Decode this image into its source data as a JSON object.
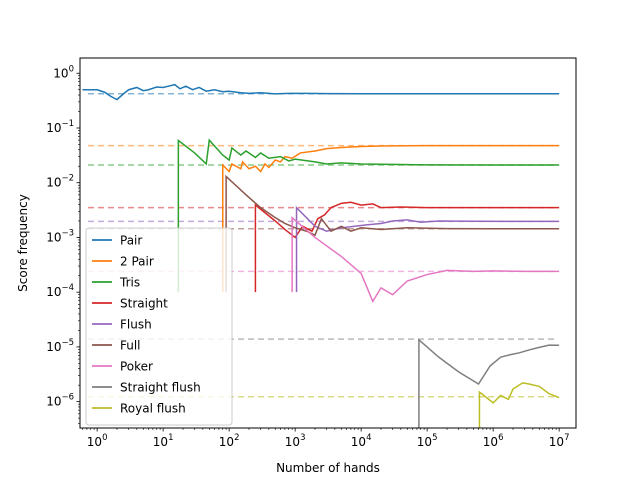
{
  "chart_data": {
    "type": "line",
    "title": "",
    "xlabel": "Number of hands",
    "ylabel": "Score frequency",
    "xscale": "log",
    "yscale": "log",
    "xlim": [
      0.55,
      18000000
    ],
    "ylim": [
      3.3e-07,
      1.9
    ],
    "grid": false,
    "legend_position": "lower-left",
    "x_ticks": [
      {
        "value": 1,
        "base": "10",
        "exp": "0"
      },
      {
        "value": 10,
        "base": "10",
        "exp": "1"
      },
      {
        "value": 100,
        "base": "10",
        "exp": "2"
      },
      {
        "value": 1000,
        "base": "10",
        "exp": "3"
      },
      {
        "value": 10000,
        "base": "10",
        "exp": "4"
      },
      {
        "value": 100000,
        "base": "10",
        "exp": "5"
      },
      {
        "value": 1000000,
        "base": "10",
        "exp": "6"
      },
      {
        "value": 10000000,
        "base": "10",
        "exp": "7"
      }
    ],
    "y_ticks": [
      {
        "value": 1e-06,
        "base": "10",
        "exp": "−6"
      },
      {
        "value": 1e-05,
        "base": "10",
        "exp": "−5"
      },
      {
        "value": 0.0001,
        "base": "10",
        "exp": "−4"
      },
      {
        "value": 0.001,
        "base": "10",
        "exp": "−3"
      },
      {
        "value": 0.01,
        "base": "10",
        "exp": "−2"
      },
      {
        "value": 0.1,
        "base": "10",
        "exp": "−1"
      },
      {
        "value": 1,
        "base": "10",
        "exp": "0"
      }
    ],
    "series": [
      {
        "name": "Pair",
        "color": "#1f77b4",
        "expected": 0.4226,
        "points": [
          [
            0.6,
            0.5
          ],
          [
            1,
            0.5
          ],
          [
            1.3,
            0.45
          ],
          [
            1.6,
            0.38
          ],
          [
            2,
            0.33
          ],
          [
            2.5,
            0.42
          ],
          [
            3,
            0.5
          ],
          [
            4,
            0.55
          ],
          [
            5,
            0.48
          ],
          [
            6,
            0.5
          ],
          [
            8,
            0.56
          ],
          [
            10,
            0.55
          ],
          [
            12,
            0.58
          ],
          [
            15,
            0.62
          ],
          [
            18,
            0.52
          ],
          [
            22,
            0.58
          ],
          [
            28,
            0.5
          ],
          [
            35,
            0.55
          ],
          [
            45,
            0.47
          ],
          [
            60,
            0.5
          ],
          [
            80,
            0.46
          ],
          [
            100,
            0.47
          ],
          [
            150,
            0.44
          ],
          [
            200,
            0.43
          ],
          [
            300,
            0.44
          ],
          [
            500,
            0.42
          ],
          [
            800,
            0.43
          ],
          [
            1500,
            0.43
          ],
          [
            3000,
            0.425
          ],
          [
            10000,
            0.423
          ],
          [
            100000,
            0.4228
          ],
          [
            1000000,
            0.4227
          ],
          [
            10000000,
            0.4226
          ]
        ]
      },
      {
        "name": "2 Pair",
        "color": "#ff7f0e",
        "expected": 0.0475,
        "points": [
          [
            80,
            0.0001
          ],
          [
            80,
            0.021
          ],
          [
            100,
            0.016
          ],
          [
            110,
            0.022
          ],
          [
            150,
            0.018
          ],
          [
            160,
            0.024
          ],
          [
            200,
            0.018
          ],
          [
            250,
            0.02
          ],
          [
            300,
            0.016
          ],
          [
            350,
            0.022
          ],
          [
            400,
            0.019
          ],
          [
            500,
            0.026
          ],
          [
            600,
            0.024
          ],
          [
            700,
            0.03
          ],
          [
            900,
            0.028
          ],
          [
            1200,
            0.035
          ],
          [
            2000,
            0.038
          ],
          [
            3000,
            0.042
          ],
          [
            5000,
            0.044
          ],
          [
            10000,
            0.046
          ],
          [
            20000,
            0.047
          ],
          [
            100000,
            0.0476
          ],
          [
            1000000,
            0.0475
          ],
          [
            10000000,
            0.0475
          ]
        ]
      },
      {
        "name": "Tris",
        "color": "#2ca02c",
        "expected": 0.0211,
        "points": [
          [
            17,
            0.0001
          ],
          [
            17,
            0.059
          ],
          [
            30,
            0.035
          ],
          [
            45,
            0.022
          ],
          [
            50,
            0.06
          ],
          [
            80,
            0.032
          ],
          [
            100,
            0.026
          ],
          [
            110,
            0.043
          ],
          [
            150,
            0.032
          ],
          [
            180,
            0.038
          ],
          [
            250,
            0.029
          ],
          [
            300,
            0.035
          ],
          [
            400,
            0.028
          ],
          [
            600,
            0.03
          ],
          [
            800,
            0.025
          ],
          [
            1000,
            0.027
          ],
          [
            2000,
            0.024
          ],
          [
            3000,
            0.022
          ],
          [
            5000,
            0.023
          ],
          [
            10000,
            0.022
          ],
          [
            100000,
            0.0212
          ],
          [
            1000000,
            0.0211
          ],
          [
            10000000,
            0.0211
          ]
        ]
      },
      {
        "name": "Straight",
        "color": "#d62728",
        "expected": 0.0035,
        "points": [
          [
            250,
            0.0001
          ],
          [
            250,
            0.0039
          ],
          [
            500,
            0.002
          ],
          [
            700,
            0.0014
          ],
          [
            1000,
            0.001
          ],
          [
            1300,
            0.0016
          ],
          [
            1800,
            0.0013
          ],
          [
            2200,
            0.0022
          ],
          [
            2800,
            0.0026
          ],
          [
            3500,
            0.0035
          ],
          [
            5000,
            0.0042
          ],
          [
            7000,
            0.0044
          ],
          [
            10000,
            0.0039
          ],
          [
            15000,
            0.0041
          ],
          [
            20000,
            0.0035
          ],
          [
            40000,
            0.0036
          ],
          [
            100000,
            0.0035
          ],
          [
            1000000,
            0.0035
          ],
          [
            10000000,
            0.0035
          ]
        ]
      },
      {
        "name": "Flush",
        "color": "#9467bd",
        "expected": 0.00197,
        "points": [
          [
            1050,
            0.0001
          ],
          [
            1050,
            0.0035
          ],
          [
            2000,
            0.0016
          ],
          [
            3000,
            0.0013
          ],
          [
            5000,
            0.0015
          ],
          [
            8000,
            0.0016
          ],
          [
            12000,
            0.0017
          ],
          [
            20000,
            0.0018
          ],
          [
            30000,
            0.002
          ],
          [
            50000,
            0.0021
          ],
          [
            80000,
            0.0019
          ],
          [
            150000,
            0.002
          ],
          [
            500000,
            0.00198
          ],
          [
            2000000,
            0.00197
          ],
          [
            10000000,
            0.00197
          ]
        ]
      },
      {
        "name": "Full",
        "color": "#8c564b",
        "expected": 0.00144,
        "points": [
          [
            90,
            0.0001
          ],
          [
            90,
            0.013
          ],
          [
            180,
            0.006
          ],
          [
            300,
            0.0035
          ],
          [
            500,
            0.0023
          ],
          [
            700,
            0.0018
          ],
          [
            1000,
            0.0015
          ],
          [
            1500,
            0.0013
          ],
          [
            2000,
            0.0011
          ],
          [
            2500,
            0.0022
          ],
          [
            3500,
            0.0013
          ],
          [
            5000,
            0.0016
          ],
          [
            7000,
            0.0013
          ],
          [
            10000,
            0.0015
          ],
          [
            20000,
            0.0014
          ],
          [
            50000,
            0.0015
          ],
          [
            200000,
            0.00145
          ],
          [
            1000000,
            0.00144
          ],
          [
            10000000,
            0.00144
          ]
        ]
      },
      {
        "name": "Poker",
        "color": "#e377c2",
        "expected": 0.00024,
        "points": [
          [
            900,
            0.0001
          ],
          [
            900,
            0.0023
          ],
          [
            2000,
            0.001
          ],
          [
            5000,
            0.00045
          ],
          [
            10000,
            0.00022
          ],
          [
            15000,
            6.8e-05
          ],
          [
            20000,
            0.00012
          ],
          [
            30000,
            9e-05
          ],
          [
            50000,
            0.00016
          ],
          [
            100000,
            0.00021
          ],
          [
            200000,
            0.00025
          ],
          [
            500000,
            0.00024
          ],
          [
            1000000,
            0.000245
          ],
          [
            3000000,
            0.00024
          ],
          [
            10000000,
            0.00024
          ]
        ]
      },
      {
        "name": "Straight flush",
        "color": "#7f7f7f",
        "expected": 1.39e-05,
        "points": [
          [
            75000,
            3.3e-07
          ],
          [
            75000,
            1.35e-05
          ],
          [
            150000,
            6.5e-06
          ],
          [
            300000,
            3.5e-06
          ],
          [
            600000,
            2.1e-06
          ],
          [
            900000,
            4.5e-06
          ],
          [
            1300000,
            6.5e-06
          ],
          [
            1800000,
            7.2e-06
          ],
          [
            2500000,
            7.8e-06
          ],
          [
            3500000,
            8.8e-06
          ],
          [
            5000000,
            9.8e-06
          ],
          [
            7000000,
            1.08e-05
          ],
          [
            10000000,
            1.07e-05
          ]
        ]
      },
      {
        "name": "Royal flush",
        "color": "#bcbd22",
        "expected": 1.23e-06,
        "points": [
          [
            620000,
            3.3e-07
          ],
          [
            620000,
            1.5e-06
          ],
          [
            1000000,
            9.5e-07
          ],
          [
            1300000,
            1.3e-06
          ],
          [
            1700000,
            1.1e-06
          ],
          [
            2000000,
            1.7e-06
          ],
          [
            2800000,
            2.2e-06
          ],
          [
            3500000,
            2.1e-06
          ],
          [
            5000000,
            1.9e-06
          ],
          [
            7000000,
            1.4e-06
          ],
          [
            10000000,
            1.18e-06
          ]
        ]
      }
    ]
  }
}
